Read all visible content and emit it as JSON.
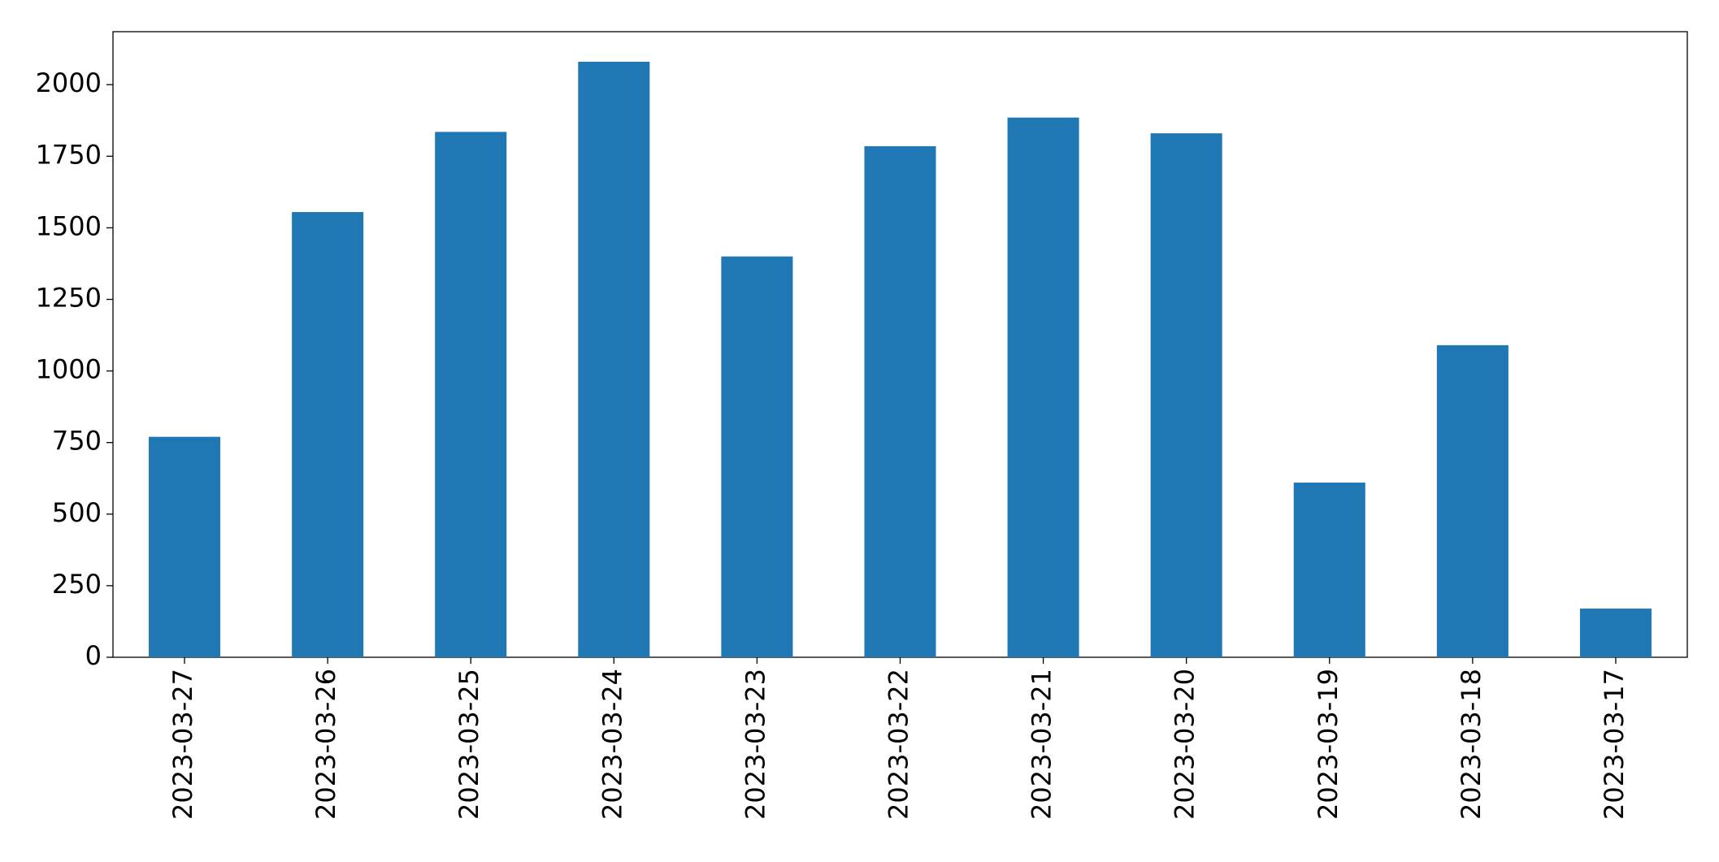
{
  "chart_data": {
    "type": "bar",
    "categories": [
      "2023-03-27",
      "2023-03-26",
      "2023-03-25",
      "2023-03-24",
      "2023-03-23",
      "2023-03-22",
      "2023-03-21",
      "2023-03-20",
      "2023-03-19",
      "2023-03-18",
      "2023-03-17"
    ],
    "values": [
      770,
      1555,
      1835,
      2080,
      1400,
      1785,
      1885,
      1830,
      610,
      1090,
      170
    ],
    "color": "#1f77b4",
    "ylim": [
      0,
      2185
    ],
    "yticks": [
      0,
      250,
      500,
      750,
      1000,
      1250,
      1500,
      1750,
      2000
    ],
    "grid": false
  }
}
